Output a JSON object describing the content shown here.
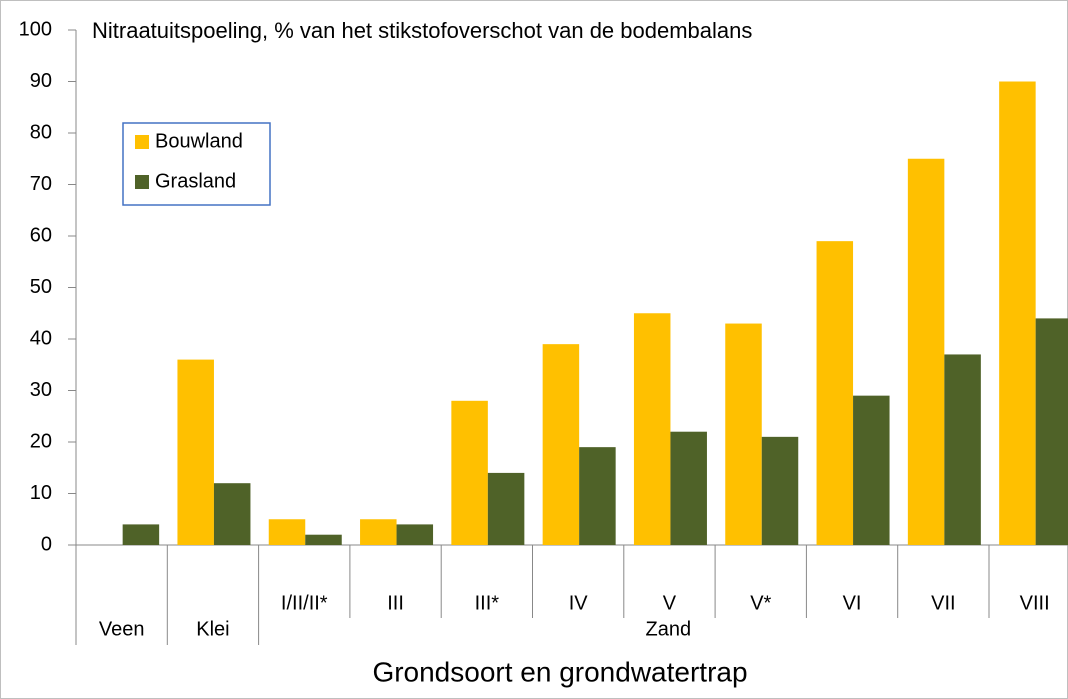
{
  "chart_data": {
    "type": "bar",
    "title": "Nitraatuitspoeling, % van het stikstofoverschot van de bodembalans",
    "x_label": "Grondsoort en grondwatertrap",
    "categories": [
      null,
      null,
      "I/II/II*",
      "III",
      "III*",
      "IV",
      "V",
      "V*",
      "VI",
      "VII",
      "VIII"
    ],
    "groups": [
      {
        "label": "Veen",
        "count": 1
      },
      {
        "label": "Klei",
        "count": 1
      },
      {
        "label": "Zand",
        "count": 9
      }
    ],
    "series": [
      {
        "name": "Bouwland",
        "color": "#ffc000",
        "values": [
          null,
          36,
          5,
          5,
          28,
          39,
          45,
          43,
          59,
          75,
          90
        ]
      },
      {
        "name": "Grasland",
        "color": "#4f6228",
        "values": [
          4,
          12,
          2,
          4,
          14,
          19,
          22,
          21,
          29,
          37,
          44
        ]
      }
    ],
    "ylim": [
      0,
      100
    ],
    "yticks": [
      0,
      10,
      20,
      30,
      40,
      50,
      60,
      70,
      80,
      90,
      100
    ],
    "grid": false,
    "legend": "upper left"
  }
}
